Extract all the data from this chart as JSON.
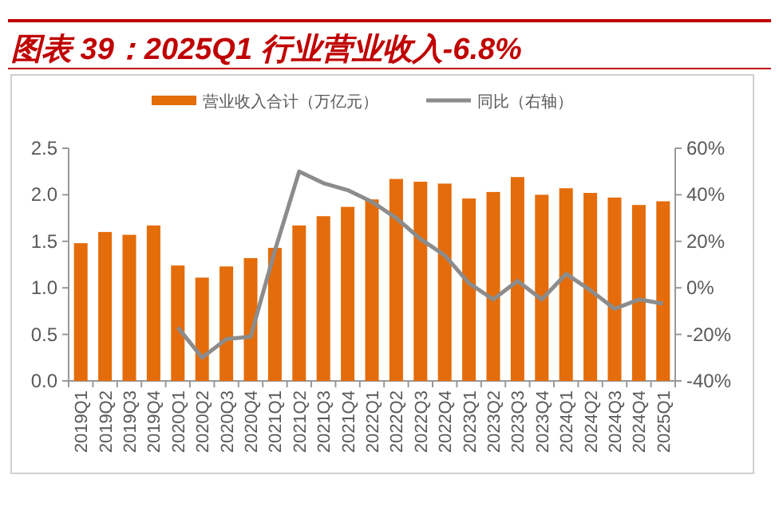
{
  "chart_data": {
    "type": "bar",
    "title": "图表 39：2025Q1 行业营业收入-6.8%",
    "categories": [
      "2019Q1",
      "2019Q2",
      "2019Q3",
      "2019Q4",
      "2020Q1",
      "2020Q2",
      "2020Q3",
      "2020Q4",
      "2021Q1",
      "2021Q2",
      "2021Q3",
      "2021Q4",
      "2022Q1",
      "2022Q2",
      "2022Q3",
      "2022Q4",
      "2023Q1",
      "2023Q2",
      "2023Q3",
      "2023Q4",
      "2024Q1",
      "2024Q2",
      "2024Q3",
      "2024Q4",
      "2025Q1"
    ],
    "series": [
      {
        "name": "营业收入合计（万亿元）",
        "color": "#e46c0a",
        "values": [
          1.48,
          1.6,
          1.57,
          1.67,
          1.24,
          1.11,
          1.23,
          1.32,
          1.43,
          1.67,
          1.77,
          1.87,
          1.95,
          2.17,
          2.14,
          2.12,
          1.96,
          2.03,
          2.19,
          2.0,
          2.07,
          2.02,
          1.97,
          1.89,
          1.93
        ]
      },
      {
        "name": "同比（右轴）",
        "type": "line",
        "axis": "y2",
        "color": "#8c8c8c",
        "values": [
          null,
          null,
          null,
          null,
          -17,
          -30,
          -22,
          -21,
          16,
          50,
          45,
          42,
          37,
          30,
          21,
          14,
          2,
          -5,
          3,
          -5,
          6,
          -1,
          -9,
          -5,
          -6.8
        ]
      }
    ],
    "ylim": [
      0,
      2.5
    ],
    "yticks": [
      {
        "value": 0,
        "label": "0.0"
      },
      {
        "value": 0.5,
        "label": "0.5"
      },
      {
        "value": 1,
        "label": "1.0"
      },
      {
        "value": 1.5,
        "label": "1.5"
      },
      {
        "value": 2,
        "label": "2.0"
      },
      {
        "value": 2.5,
        "label": "2.5"
      }
    ],
    "y2lim": [
      -40,
      60
    ],
    "y2ticks": [
      {
        "value": -40,
        "label": "-40%"
      },
      {
        "value": -20,
        "label": "-20%"
      },
      {
        "value": 0,
        "label": "0%"
      },
      {
        "value": 20,
        "label": "20%"
      },
      {
        "value": 40,
        "label": "40%"
      },
      {
        "value": 60,
        "label": "60%"
      }
    ],
    "legend": "top",
    "grid": false
  }
}
